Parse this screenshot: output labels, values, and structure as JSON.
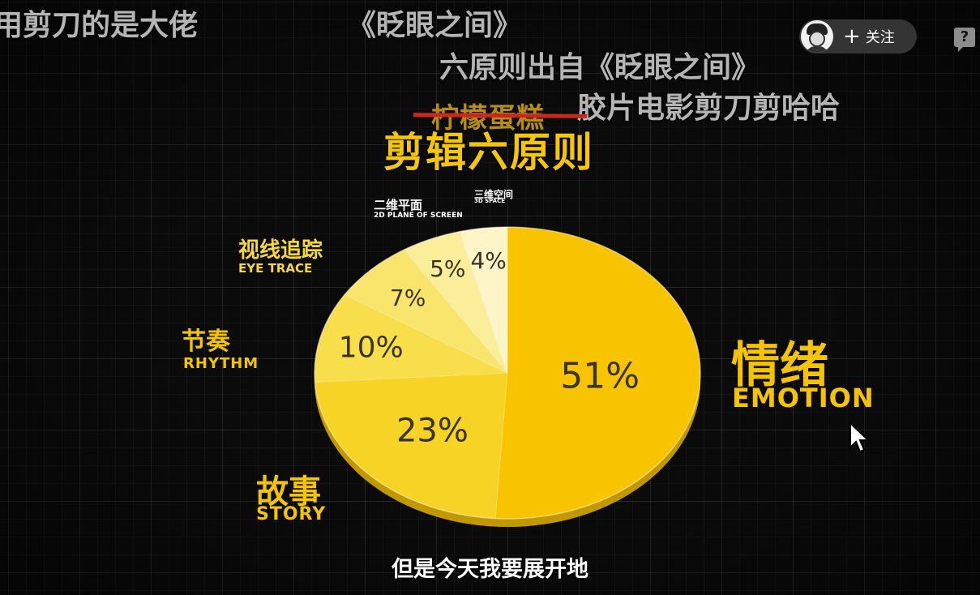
{
  "danmaku": [
    "用剪刀的是大佬",
    "《眨眼之间》",
    "六原则出自《眨眼之间》",
    "胶片电影剪刀剪哈哈"
  ],
  "follow": {
    "label": "关注",
    "icon": "plus-icon"
  },
  "help_icon": "?",
  "crossed_text": "柠檬蛋糕",
  "subtitle": "但是今天我要展开地",
  "colors": {
    "accent": "#f5c400",
    "background": "#0b0b0b",
    "strike": "#c8281e",
    "slices": [
      "#f8c400",
      "#f7d326",
      "#f8de4a",
      "#f9e56c",
      "#fbee9a",
      "#fdf5c8"
    ]
  },
  "chart_data": {
    "type": "pie",
    "title": "剪辑六原则",
    "slices": [
      {
        "label_zh": "情绪",
        "label_en": "EMOTION",
        "value": 51,
        "pct": "51%"
      },
      {
        "label_zh": "故事",
        "label_en": "STORY",
        "value": 23,
        "pct": "23%"
      },
      {
        "label_zh": "节奏",
        "label_en": "RHYTHM",
        "value": 10,
        "pct": "10%"
      },
      {
        "label_zh": "视线追踪",
        "label_en": "EYE TRACE",
        "value": 7,
        "pct": "7%"
      },
      {
        "label_zh": "二维平面",
        "label_en": "2D PLANE OF SCREEN",
        "value": 5,
        "pct": "5%"
      },
      {
        "label_zh": "三维空间",
        "label_en": "3D SPACE",
        "value": 4,
        "pct": "4%"
      }
    ]
  }
}
